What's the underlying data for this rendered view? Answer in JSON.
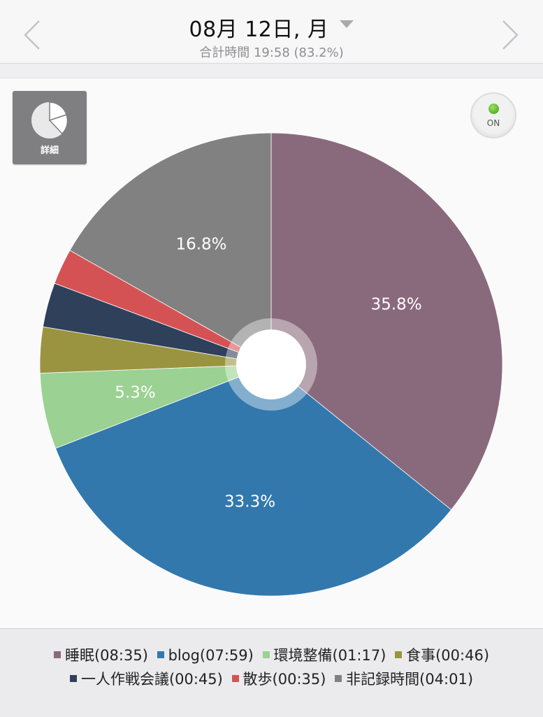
{
  "header": {
    "date_label": "08月 12日, 月",
    "summary": "合計時間 19:58 (83.2%)"
  },
  "detail_button": {
    "label": "詳細",
    "icon": "pie-chart-icon"
  },
  "toggle": {
    "label": "ON",
    "state": "on",
    "led_color": "#5cbf2a"
  },
  "chart_data": {
    "type": "pie",
    "donut_hole": true,
    "slices": [
      {
        "name": "睡眠",
        "time": "08:35",
        "percent": 35.8,
        "label": "35.8%",
        "color": "#896a7c"
      },
      {
        "name": "blog",
        "time": "07:59",
        "percent": 33.3,
        "label": "33.3%",
        "color": "#3278ad"
      },
      {
        "name": "環境整備",
        "time": "01:17",
        "percent": 5.3,
        "label": "5.3%",
        "color": "#9bd192"
      },
      {
        "name": "食事",
        "time": "00:46",
        "percent": 3.2,
        "label": "",
        "color": "#9a9440"
      },
      {
        "name": "一人作戦会議",
        "time": "00:45",
        "percent": 3.1,
        "label": "",
        "color": "#2f405b"
      },
      {
        "name": "散歩",
        "time": "00:35",
        "percent": 2.5,
        "label": "",
        "color": "#d55254"
      },
      {
        "name": "非記録時間",
        "time": "04:01",
        "percent": 16.8,
        "label": "16.8%",
        "color": "#818181"
      }
    ]
  },
  "legend": [
    {
      "text": "睡眠(08:35)",
      "color": "#896a7c"
    },
    {
      "text": "blog(07:59)",
      "color": "#3278ad"
    },
    {
      "text": "環境整備(01:17)",
      "color": "#9bd192"
    },
    {
      "text": "食事(00:46)",
      "color": "#9a9440"
    },
    {
      "text": "一人作戦会議(00:45)",
      "color": "#2f405b"
    },
    {
      "text": "散歩(00:35)",
      "color": "#d55254"
    },
    {
      "text": "非記録時間(04:01)",
      "color": "#818181"
    }
  ]
}
